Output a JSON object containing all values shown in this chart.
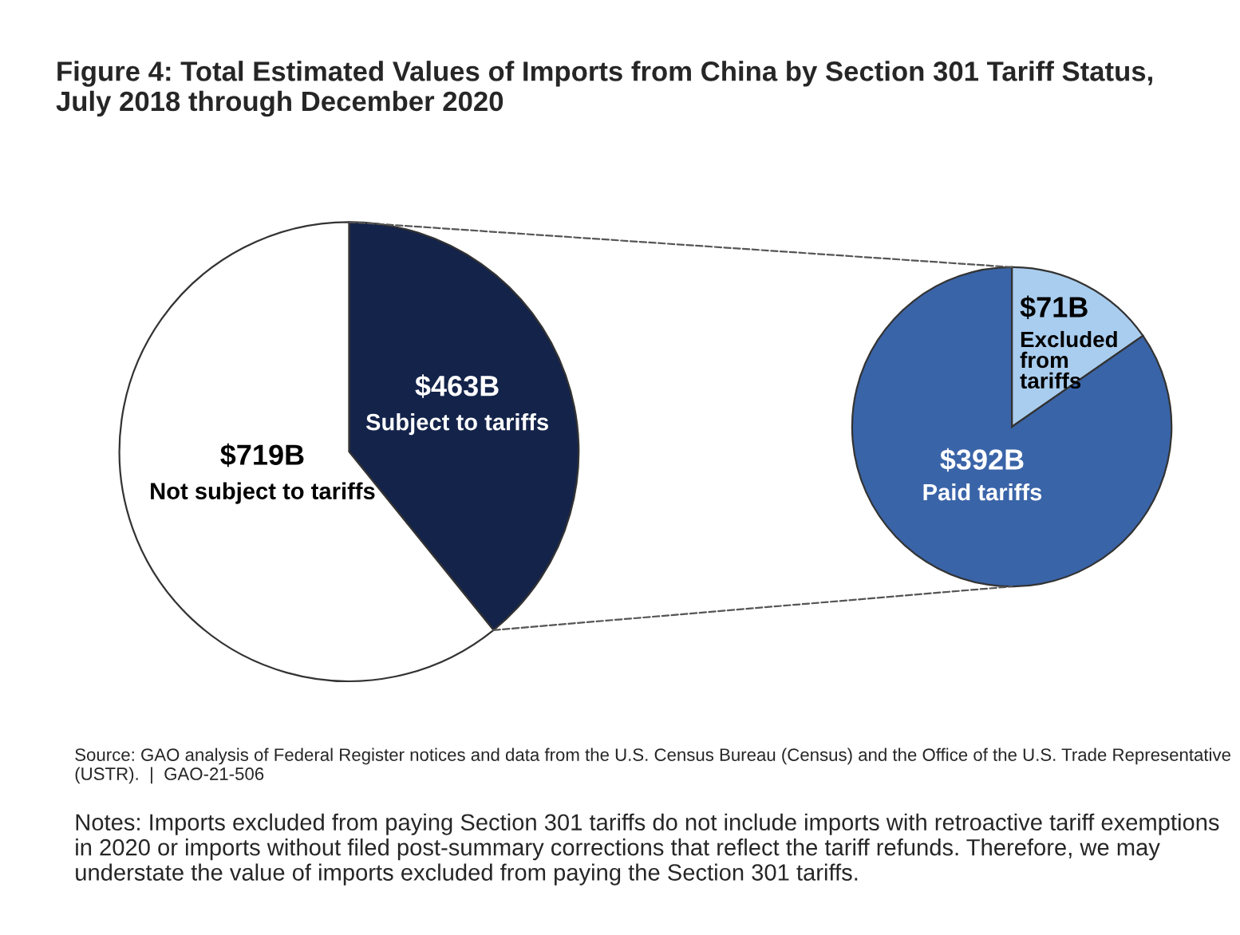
{
  "chart_data": [
    {
      "type": "pie",
      "title": "Figure 4: Total Estimated Values of Imports from China by Section 301 Tariff Status,\nJuly 2018 through December 2020",
      "categories": [
        "Subject to tariffs",
        "Not subject to tariffs"
      ],
      "values": [
        463,
        719
      ],
      "colors": [
        "#14234a",
        "#ffffff"
      ],
      "value_labels": [
        "$463B",
        "$719B"
      ],
      "annotations": [
        "Source: GAO analysis of Federal Register notices and data from the U.S. Census Bureau (Census) and the Office of the U.S. Trade Representative (USTR).  |  GAO-21-506",
        "Notes: Imports excluded from paying Section 301 tariffs do not include imports with retroactive tariff exemptions in 2020 or imports without filed post-summary corrections that reflect the tariff refunds. Therefore, we may understate the value of imports excluded from paying the Section 301 tariffs."
      ]
    },
    {
      "type": "pie",
      "categories": [
        "Excluded\nfrom\ntariffs",
        "Paid tariffs"
      ],
      "values": [
        71,
        392
      ],
      "colors": [
        "#a9cdee",
        "#3a64a8"
      ],
      "value_labels": [
        "$71B",
        "$392B"
      ]
    }
  ]
}
